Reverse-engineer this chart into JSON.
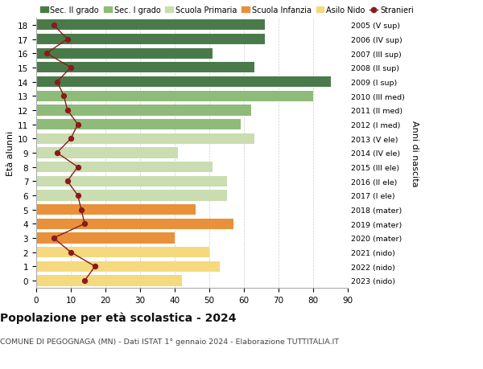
{
  "ages": [
    0,
    1,
    2,
    3,
    4,
    5,
    6,
    7,
    8,
    9,
    10,
    11,
    12,
    13,
    14,
    15,
    16,
    17,
    18
  ],
  "anni_nascita": [
    "2023 (nido)",
    "2022 (nido)",
    "2021 (nido)",
    "2020 (mater)",
    "2019 (mater)",
    "2018 (mater)",
    "2017 (I ele)",
    "2016 (II ele)",
    "2015 (III ele)",
    "2014 (IV ele)",
    "2013 (V ele)",
    "2012 (I med)",
    "2011 (II med)",
    "2010 (III med)",
    "2009 (I sup)",
    "2008 (II sup)",
    "2007 (III sup)",
    "2006 (IV sup)",
    "2005 (V sup)"
  ],
  "bar_values": [
    42,
    53,
    50,
    40,
    57,
    46,
    55,
    55,
    51,
    41,
    63,
    59,
    62,
    80,
    85,
    63,
    51,
    66,
    66
  ],
  "bar_colors": [
    "#f5d97e",
    "#f5d97e",
    "#f5d97e",
    "#e8913a",
    "#e8913a",
    "#e8913a",
    "#c9ddb0",
    "#c9ddb0",
    "#c9ddb0",
    "#c9ddb0",
    "#c9ddb0",
    "#8fbb7a",
    "#8fbb7a",
    "#8fbb7a",
    "#4b7a4a",
    "#4b7a4a",
    "#4b7a4a",
    "#4b7a4a",
    "#4b7a4a"
  ],
  "stranieri_values": [
    14,
    17,
    10,
    5,
    14,
    13,
    12,
    9,
    12,
    6,
    10,
    12,
    9,
    8,
    6,
    10,
    3,
    9,
    5
  ],
  "stranieri_color": "#8b1a1a",
  "legend_labels": [
    "Sec. II grado",
    "Sec. I grado",
    "Scuola Primaria",
    "Scuola Infanzia",
    "Asilo Nido",
    "Stranieri"
  ],
  "legend_colors": [
    "#4b7a4a",
    "#8fbb7a",
    "#c9ddb0",
    "#e8913a",
    "#f5d97e",
    "#8b1a1a"
  ],
  "title": "Popolazione per età scolastica - 2024",
  "subtitle": "COMUNE DI PEGOGNAGA (MN) - Dati ISTAT 1° gennaio 2024 - Elaborazione TUTTITALIA.IT",
  "ylabel_left": "Età alunni",
  "ylabel_right": "Anni di nascita",
  "xlim": [
    0,
    90
  ],
  "xticks": [
    0,
    10,
    20,
    30,
    40,
    50,
    60,
    70,
    80,
    90
  ],
  "background_color": "#ffffff",
  "grid_color": "#cccccc"
}
